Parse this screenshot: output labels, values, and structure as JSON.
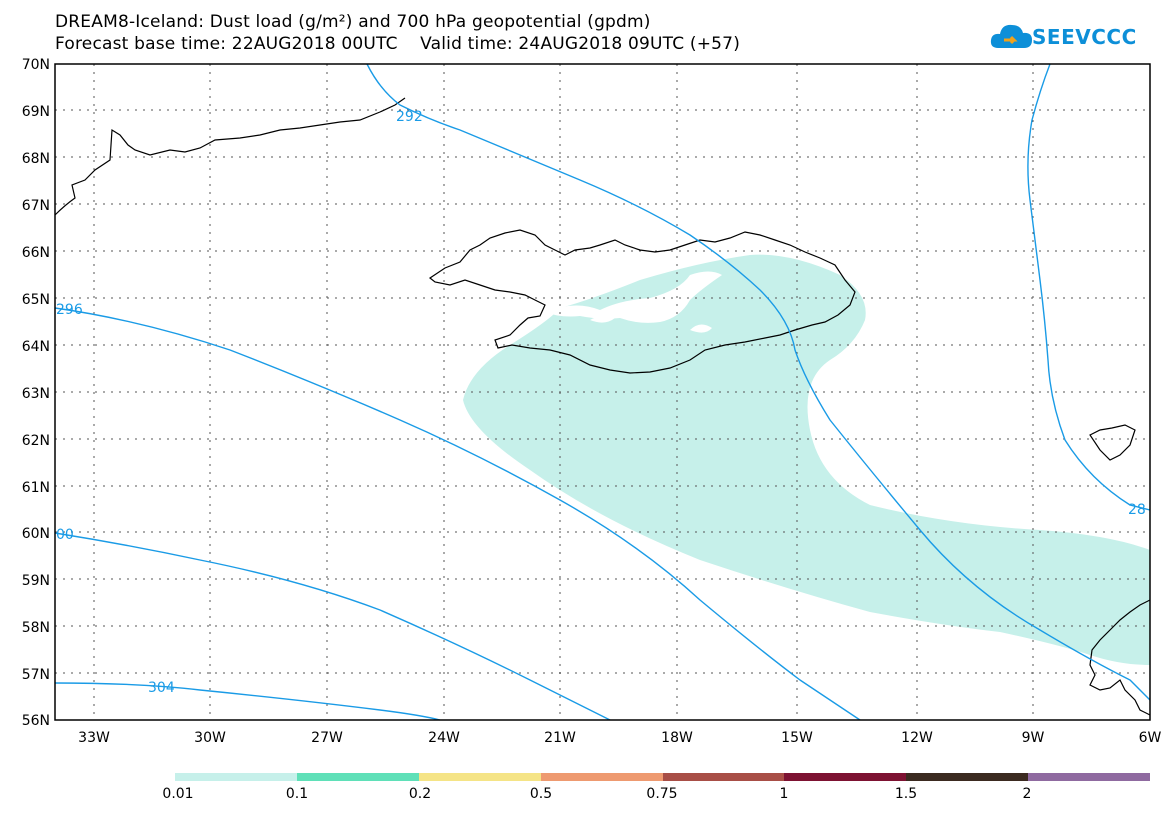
{
  "header": {
    "title_line1": "DREAM8-Iceland: Dust load (g/m²) and 700 hPa geopotential (gpdm)",
    "title_line2": "Forecast base time: 22AUG2018 00UTC    Valid time: 24AUG2018 09UTC (+57)"
  },
  "logo": {
    "text": "SEEVCCC",
    "icon": "cloud-icon",
    "color": "#0d8fd8"
  },
  "map": {
    "lon_labels": [
      "33W",
      "30W",
      "27W",
      "24W",
      "21W",
      "18W",
      "15W",
      "12W",
      "9W",
      "6W"
    ],
    "lat_labels": [
      "70N",
      "69N",
      "68N",
      "67N",
      "66N",
      "65N",
      "64N",
      "63N",
      "62N",
      "61N",
      "60N",
      "59N",
      "58N",
      "57N",
      "56N"
    ],
    "contour_labels": [
      "292",
      "296",
      "00",
      "304",
      "28"
    ],
    "dust_color": "#c6f0ea",
    "contour_color": "#1a9be6",
    "coast_color": "#000000"
  },
  "colorbar": {
    "labels": [
      "0.01",
      "0.1",
      "0.2",
      "0.5",
      "0.75",
      "1",
      "1.5",
      "2"
    ],
    "colors": [
      "#c6f0ea",
      "#5fe0b8",
      "#f5e486",
      "#ee9a70",
      "#a84e46",
      "#7d1232",
      "#3b2a20",
      "#8f6aa0"
    ]
  }
}
